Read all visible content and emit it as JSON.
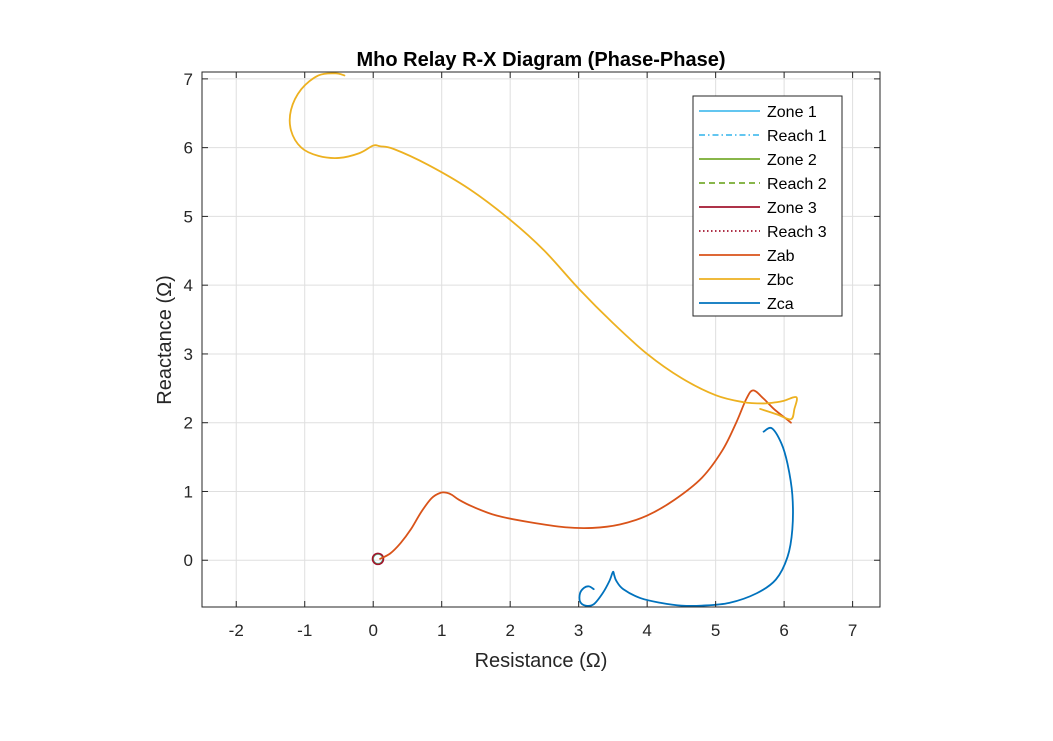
{
  "chart_data": {
    "type": "line",
    "title": "Mho Relay R-X Diagram (Phase-Phase)",
    "xlabel": "Resistance (Ω)",
    "ylabel": "Reactance (Ω)",
    "xlim": [
      -2.5,
      7.4
    ],
    "ylim": [
      -0.68,
      7.1
    ],
    "xticks": [
      -2,
      -1,
      0,
      1,
      2,
      3,
      4,
      5,
      6,
      7
    ],
    "yticks": [
      0,
      1,
      2,
      3,
      4,
      5,
      6,
      7
    ],
    "grid": true,
    "legend_position": "top-right",
    "legend": [
      {
        "label": "Zone 1",
        "color": "#4DBEEE",
        "style": "solid"
      },
      {
        "label": "Reach 1",
        "color": "#4DBEEE",
        "style": "dashdot"
      },
      {
        "label": "Zone 2",
        "color": "#77AC30",
        "style": "solid"
      },
      {
        "label": "Reach 2",
        "color": "#77AC30",
        "style": "dashed"
      },
      {
        "label": "Zone 3",
        "color": "#A2142F",
        "style": "solid"
      },
      {
        "label": "Reach 3",
        "color": "#A2142F",
        "style": "dotted"
      },
      {
        "label": "Zab",
        "color": "#D95319",
        "style": "solid"
      },
      {
        "label": "Zbc",
        "color": "#EDB120",
        "style": "solid"
      },
      {
        "label": "Zca",
        "color": "#0072BD",
        "style": "solid"
      }
    ],
    "zones": [
      {
        "name": "Zone 1",
        "center": [
          0.07,
          0.02
        ],
        "radius": 0.07,
        "color": "#4DBEEE"
      },
      {
        "name": "Zone 2",
        "center": [
          0.07,
          0.02
        ],
        "radius": 0.075,
        "color": "#77AC30"
      },
      {
        "name": "Zone 3",
        "center": [
          0.07,
          0.02
        ],
        "radius": 0.08,
        "color": "#A2142F"
      }
    ],
    "series": [
      {
        "name": "Zab",
        "color": "#D95319",
        "x": [
          0.1,
          0.25,
          0.4,
          0.55,
          0.7,
          0.85,
          0.98,
          1.08,
          1.15,
          1.25,
          1.45,
          1.8,
          2.3,
          2.8,
          3.2,
          3.6,
          4.0,
          4.4,
          4.8,
          5.1,
          5.3,
          5.45,
          5.55,
          5.7,
          5.85,
          6.0,
          6.1
        ],
        "y": [
          0.02,
          0.1,
          0.25,
          0.45,
          0.7,
          0.9,
          0.98,
          0.98,
          0.95,
          0.88,
          0.78,
          0.65,
          0.55,
          0.48,
          0.47,
          0.52,
          0.65,
          0.88,
          1.2,
          1.6,
          2.0,
          2.35,
          2.47,
          2.35,
          2.2,
          2.08,
          2.0
        ]
      },
      {
        "name": "Zbc",
        "color": "#EDB120",
        "x": [
          -0.42,
          -0.55,
          -0.8,
          -1.05,
          -1.2,
          -1.2,
          -1.05,
          -0.8,
          -0.5,
          -0.2,
          0.0,
          0.1,
          0.3,
          0.8,
          1.4,
          2.0,
          2.5,
          3.0,
          3.5,
          4.0,
          4.5,
          5.0,
          5.4,
          5.7,
          5.9,
          6.0,
          6.18,
          6.15,
          6.1,
          5.9,
          5.65
        ],
        "y": [
          7.05,
          7.08,
          7.05,
          6.85,
          6.55,
          6.25,
          6.0,
          5.88,
          5.85,
          5.92,
          6.03,
          6.02,
          5.98,
          5.75,
          5.4,
          4.95,
          4.5,
          3.95,
          3.45,
          3.0,
          2.65,
          2.4,
          2.3,
          2.28,
          2.3,
          2.32,
          2.37,
          2.2,
          2.05,
          2.12,
          2.2
        ]
      },
      {
        "name": "Zca",
        "color": "#0072BD",
        "x": [
          5.7,
          5.82,
          5.96,
          6.05,
          6.12,
          6.12,
          6.05,
          5.88,
          5.6,
          5.2,
          4.8,
          4.5,
          4.2,
          3.9,
          3.65,
          3.55,
          3.52,
          3.5,
          3.45,
          3.35,
          3.22,
          3.1,
          3.02,
          3.02,
          3.08,
          3.15,
          3.22
        ],
        "y": [
          1.87,
          1.92,
          1.7,
          1.4,
          0.95,
          0.45,
          0.05,
          -0.28,
          -0.48,
          -0.62,
          -0.66,
          -0.66,
          -0.62,
          -0.55,
          -0.42,
          -0.3,
          -0.22,
          -0.17,
          -0.3,
          -0.48,
          -0.64,
          -0.66,
          -0.6,
          -0.48,
          -0.4,
          -0.38,
          -0.42
        ]
      }
    ]
  }
}
